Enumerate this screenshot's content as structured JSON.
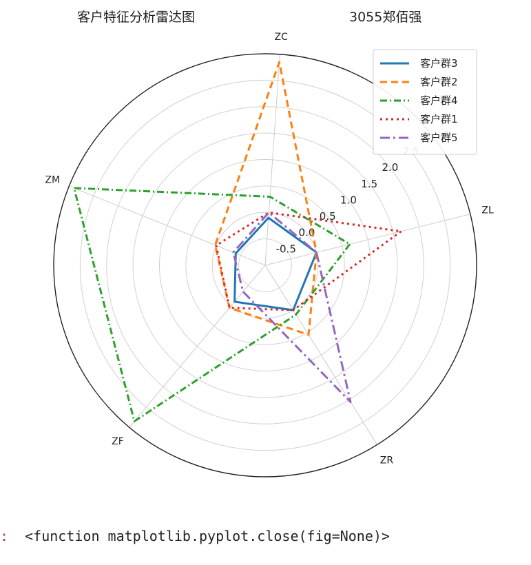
{
  "titles": {
    "left": "客户特征分析雷达图",
    "right": "3055郑佰强"
  },
  "output": {
    "prompt": ":",
    "text": "<function matplotlib.pyplot.close(fig=None)>"
  },
  "chart_data": {
    "type": "radar",
    "title": "客户特征分析雷达图",
    "axes": [
      "ZL",
      "ZR",
      "ZF",
      "ZM",
      "ZC"
    ],
    "rlim": [
      -1,
      3
    ],
    "rticks": [
      -0.5,
      0.0,
      0.5,
      1.0,
      1.5,
      2.0,
      2.5
    ],
    "rtick_labels": [
      "-0.5",
      "0.0",
      "0.5",
      "1.0",
      "1.5",
      "2.0",
      "2.5"
    ],
    "grid": true,
    "legend_position": "upper-right",
    "series": [
      {
        "name": "客户群3",
        "values": [
          0.0,
          0.0,
          -0.1,
          -0.4,
          -0.1
        ],
        "color": "#1f77b4",
        "linestyle": "solid"
      },
      {
        "name": "客户群2",
        "values": [
          0.0,
          0.55,
          0.05,
          0.02,
          2.85
        ],
        "color": "#ff7f0e",
        "linestyle": "dashed"
      },
      {
        "name": "客户群4",
        "values": [
          0.65,
          0.1,
          2.85,
          2.9,
          0.3
        ],
        "color": "#2ca02c",
        "linestyle": "dashdot-dense"
      },
      {
        "name": "客户群1",
        "values": [
          1.65,
          0.0,
          0.05,
          0.0,
          0.0
        ],
        "color": "#d62728",
        "linestyle": "dotted"
      },
      {
        "name": "客户群5",
        "values": [
          0.0,
          2.05,
          -0.35,
          -0.35,
          0.0
        ],
        "color": "#9467bd",
        "linestyle": "dashdot"
      }
    ]
  }
}
